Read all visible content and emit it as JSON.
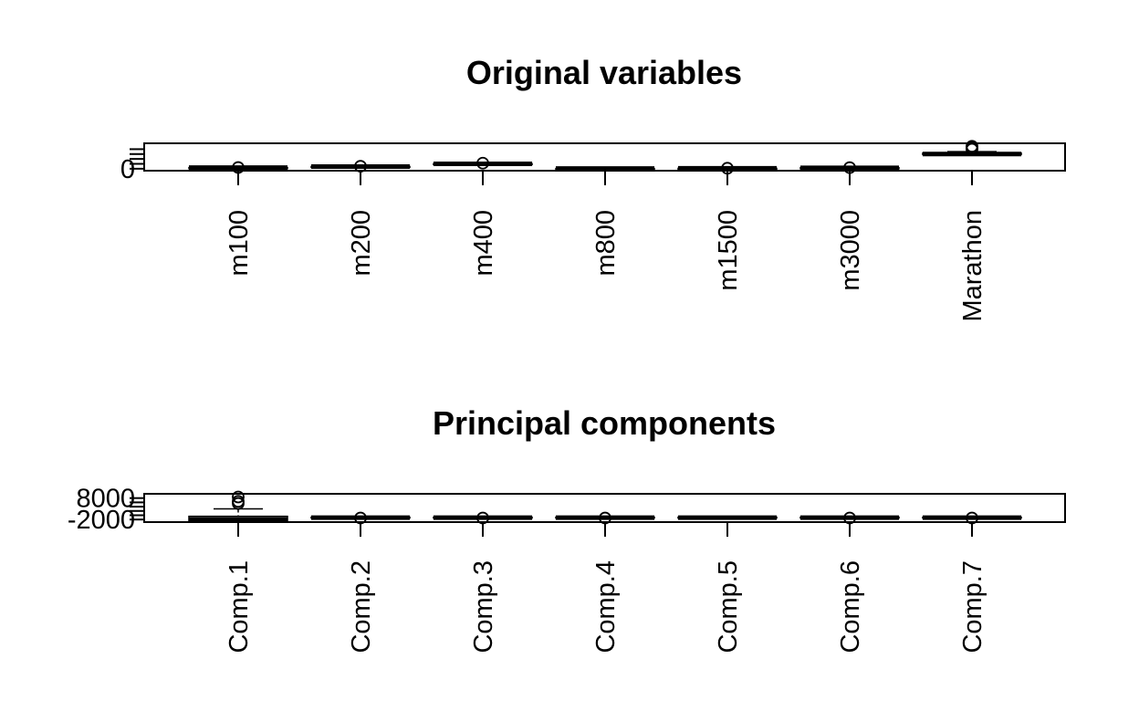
{
  "chart_data": [
    {
      "type": "boxplot",
      "title": "Original variables",
      "xlabel": "",
      "ylabel": "",
      "categories": [
        "m100",
        "m200",
        "m400",
        "m800",
        "m1500",
        "m3000",
        "Marathon"
      ],
      "ylim": [
        -20,
        260
      ],
      "yticks_labeled": [
        0
      ],
      "yticks_minor": [
        50,
        100,
        150,
        200
      ],
      "boxes": [
        {
          "name": "m100",
          "min": 10.4,
          "q1": 10.9,
          "median": 11.0,
          "q3": 11.3,
          "max": 11.8,
          "outliers": [
            12.2
          ]
        },
        {
          "name": "m200",
          "min": 20.8,
          "q1": 22.0,
          "median": 22.4,
          "q3": 23.0,
          "max": 24.0,
          "outliers": [
            25
          ]
        },
        {
          "name": "m400",
          "min": 46.0,
          "q1": 49.0,
          "median": 50.0,
          "q3": 52.0,
          "max": 54.0,
          "outliers": [
            57
          ]
        },
        {
          "name": "m800",
          "min": 1.9,
          "q1": 2.0,
          "median": 2.05,
          "q3": 2.1,
          "max": 2.2,
          "outliers": []
        },
        {
          "name": "m1500",
          "min": 4.0,
          "q1": 4.1,
          "median": 4.2,
          "q3": 4.4,
          "max": 4.6,
          "outliers": [
            5.0
          ]
        },
        {
          "name": "m3000",
          "min": 8.5,
          "q1": 9.0,
          "median": 9.3,
          "q3": 9.8,
          "max": 10.5,
          "outliers": [
            11.0
          ]
        },
        {
          "name": "Marathon",
          "min": 140,
          "q1": 145,
          "median": 150,
          "q3": 160,
          "max": 175,
          "outliers": [
            200,
            215,
            230
          ]
        }
      ]
    },
    {
      "type": "boxplot",
      "title": "Principal components",
      "xlabel": "",
      "ylabel": "",
      "categories": [
        "Comp.1",
        "Comp.2",
        "Comp.3",
        "Comp.4",
        "Comp.5",
        "Comp.6",
        "Comp.7"
      ],
      "ylim": [
        -3200,
        10000
      ],
      "yticks_labeled": [
        -2000,
        8000
      ],
      "yticks_minor": [
        0,
        2000,
        4000,
        6000
      ],
      "boxes": [
        {
          "name": "Comp.1",
          "min": -2800,
          "q1": -2500,
          "median": -2000,
          "q3": -500,
          "max": 3000,
          "outliers": [
            5500,
            6500,
            8500
          ]
        },
        {
          "name": "Comp.2",
          "min": -1400,
          "q1": -1200,
          "median": -1100,
          "q3": -900,
          "max": -600,
          "outliers": [
            -1300
          ]
        },
        {
          "name": "Comp.3",
          "min": -1400,
          "q1": -1200,
          "median": -1100,
          "q3": -900,
          "max": -600,
          "outliers": [
            -1300
          ]
        },
        {
          "name": "Comp.4",
          "min": -1400,
          "q1": -1200,
          "median": -1100,
          "q3": -900,
          "max": -600,
          "outliers": [
            -1300
          ]
        },
        {
          "name": "Comp.5",
          "min": -1400,
          "q1": -1200,
          "median": -1100,
          "q3": -900,
          "max": -600,
          "outliers": []
        },
        {
          "name": "Comp.6",
          "min": -1400,
          "q1": -1200,
          "median": -1100,
          "q3": -900,
          "max": -600,
          "outliers": [
            -1300
          ]
        },
        {
          "name": "Comp.7",
          "min": -1400,
          "q1": -1200,
          "median": -1100,
          "q3": -900,
          "max": -600,
          "outliers": [
            -1300
          ]
        }
      ]
    }
  ]
}
